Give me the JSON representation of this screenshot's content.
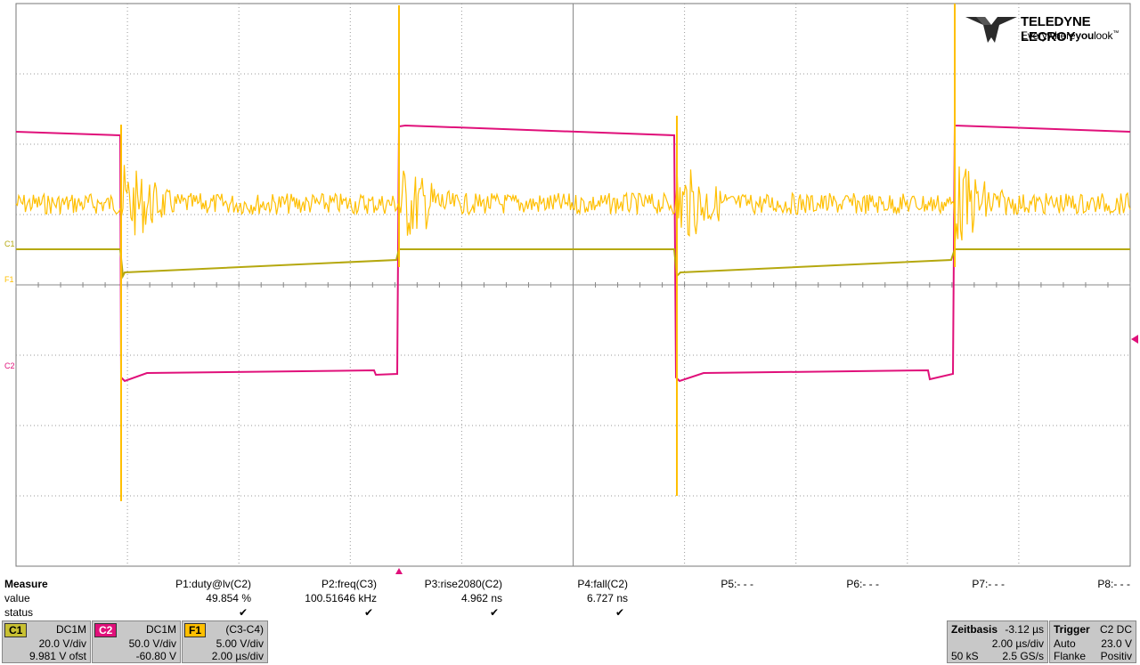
{
  "logo": {
    "brand": "TELEDYNE LECROY",
    "tag_prefix": "Everywhere",
    "tag_bold": "you",
    "tag_suffix": "look",
    "tm": "™"
  },
  "labels": {
    "c1": "C1",
    "f1": "F1",
    "c2": "C2"
  },
  "colors": {
    "c1": "#b5a80f",
    "c2": "#e0107a",
    "f1": "#ffbf00",
    "grid": "#9a9a9a"
  },
  "measure": {
    "title": "Measure",
    "row_value": "value",
    "row_status": "status",
    "params": [
      {
        "name": "P1:duty@lv(C2)",
        "value": "49.854 %",
        "status": "ok"
      },
      {
        "name": "P2:freq(C3)",
        "value": "100.51646 kHz",
        "status": "ok"
      },
      {
        "name": "P3:rise2080(C2)",
        "value": "4.962 ns",
        "status": "ok"
      },
      {
        "name": "P4:fall(C2)",
        "value": "6.727 ns",
        "status": "ok"
      },
      {
        "name": "P5:- - -",
        "value": "",
        "status": ""
      },
      {
        "name": "P6:- - -",
        "value": "",
        "status": ""
      },
      {
        "name": "P7:- - -",
        "value": "",
        "status": ""
      },
      {
        "name": "P8:- - -",
        "value": "",
        "status": ""
      }
    ]
  },
  "channels": {
    "c1": {
      "tag": "C1",
      "coupling": "DC1M",
      "scale": "20.0 V/div",
      "offset": "9.981 V ofst"
    },
    "c2": {
      "tag": "C2",
      "coupling": "DC1M",
      "scale": "50.0 V/div",
      "offset": "-60.80 V"
    },
    "f1": {
      "tag": "F1",
      "expr": "(C3-C4)",
      "scale": "5.00 V/div",
      "time": "2.00 µs/div"
    }
  },
  "timebase": {
    "title": "Zeitbasis",
    "delay": "-3.12 µs",
    "tdiv": "2.00 µs/div",
    "samples": "50 kS",
    "rate": "2.5 GS/s"
  },
  "trigger": {
    "title": "Trigger",
    "source": "C2 DC",
    "mode": "Auto",
    "level": "23.0 V",
    "type": "Flanke",
    "slope": "Positiv"
  }
}
